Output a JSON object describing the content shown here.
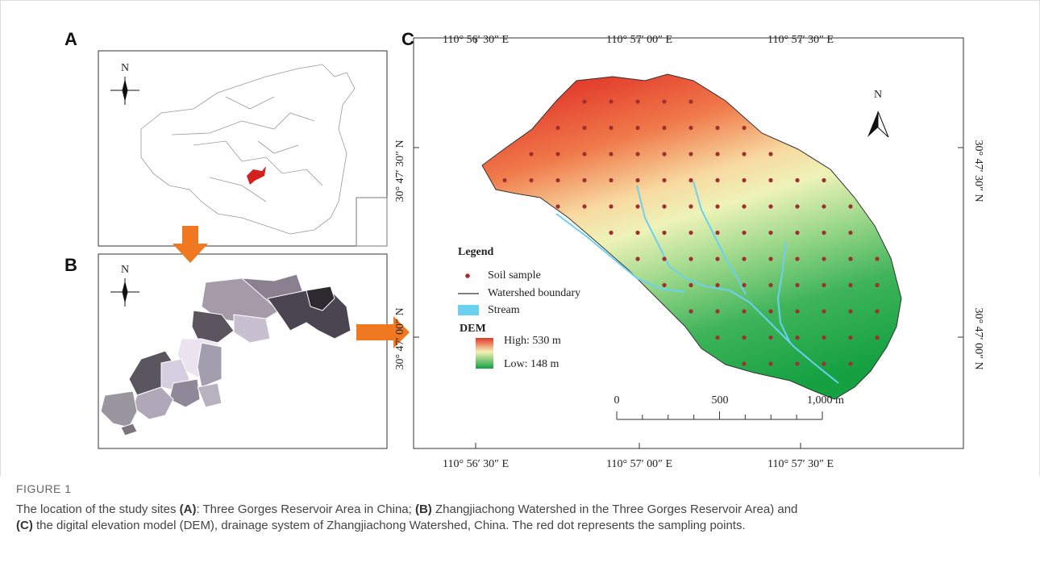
{
  "panels": {
    "a": {
      "label": "A",
      "north": "N"
    },
    "b": {
      "label": "B",
      "north": "N"
    },
    "c": {
      "label": "C",
      "north": "N"
    }
  },
  "map": {
    "top_labels": [
      "110° 56′ 30″ E",
      "110° 57′ 00″ E",
      "110° 57′ 30″ E"
    ],
    "bottom_labels": [
      "110° 56′ 30″ E",
      "110° 57′ 00″ E",
      "110° 57′ 30″ E"
    ],
    "left_labels": [
      "30° 47′ 30″ N",
      "30° 47′ 00″ N"
    ],
    "right_labels": [
      "30° 47′ 30″ N",
      "30° 47′ 00″ N"
    ],
    "legend": {
      "title": "Legend",
      "soil_sample": "Soil sample",
      "boundary": "Watershed boundary",
      "stream": "Stream",
      "dem": "DEM",
      "high": "High: 530 m",
      "low": "Low: 148 m"
    },
    "scale": [
      "0",
      "500",
      "1,000 m"
    ]
  },
  "caption": {
    "label": "FIGURE 1",
    "parts": [
      "The location of the study sites ",
      "(A)",
      ": Three Gorges Reservoir Area in China; ",
      "(B)",
      " Zhangjiachong Watershed in the Three Gorges Reservoir Area) and ",
      "(C)",
      " the digital elevation model (DEM), drainage system of Zhangjiachong Watershed, China. The red dot represents the sampling points."
    ]
  }
}
